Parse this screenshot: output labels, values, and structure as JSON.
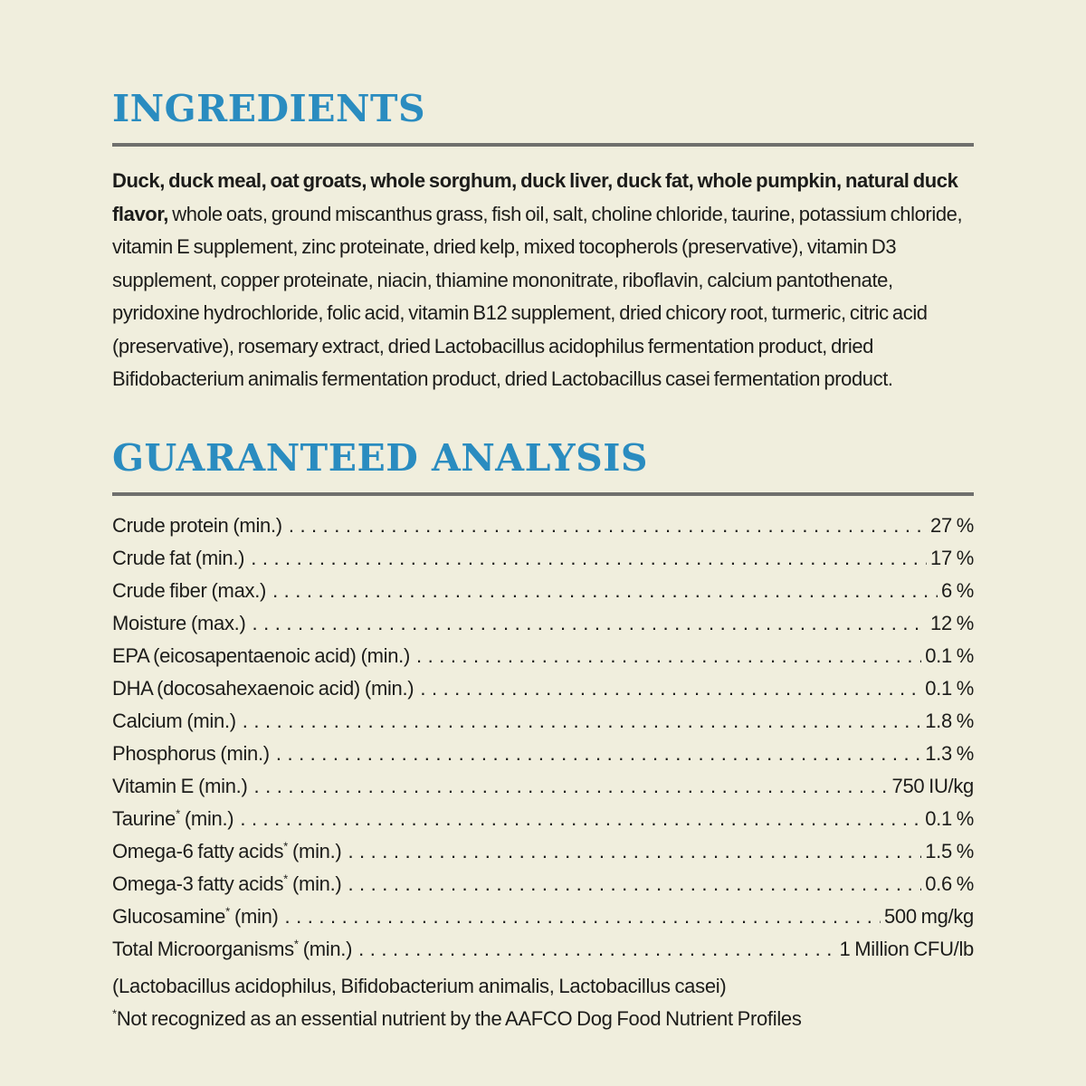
{
  "page": {
    "background": "#f0eedd",
    "accent_blue": "#2a8cc0",
    "rule_gray": "#6f6f6d",
    "text_color": "#1c1c1a"
  },
  "ingredients": {
    "title": "INGREDIENTS",
    "lead_bold": "Duck, duck meal, oat groats, whole sorghum, duck liver, duck fat, whole pumpkin, natural duck flavor,",
    "rest": " whole oats, ground miscanthus grass, fish oil, salt, choline chloride, taurine, potassium chloride, vitamin E supplement, zinc proteinate, dried kelp, mixed tocopherols (preservative), vitamin D3 supplement, copper proteinate, niacin, thiamine mononitrate, riboflavin, calcium pantothenate, pyridoxine hydrochloride, folic acid, vitamin B12 supplement, dried chicory root, turmeric, citric acid (preservative), rosemary extract, dried Lactobacillus acidophilus fermentation product, dried Bifidobacterium animalis fermentation product, dried Lactobacillus casei fermentation product."
  },
  "guaranteed_analysis": {
    "title": "GUARANTEED ANALYSIS",
    "rows": [
      {
        "name": "Crude protein",
        "sup": "",
        "qualifier": "(min.)",
        "value": "27 %"
      },
      {
        "name": "Crude fat",
        "sup": "",
        "qualifier": "(min.)",
        "value": "17 %"
      },
      {
        "name": "Crude fiber",
        "sup": "",
        "qualifier": "(max.)",
        "value": "6 %"
      },
      {
        "name": "Moisture",
        "sup": "",
        "qualifier": "(max.)",
        "value": "12 %"
      },
      {
        "name": "EPA (eicosapentaenoic acid)",
        "sup": "",
        "qualifier": "(min.)",
        "value": "0.1 %"
      },
      {
        "name": "DHA (docosahexaenoic acid)",
        "sup": "",
        "qualifier": "(min.)",
        "value": "0.1 %"
      },
      {
        "name": "Calcium",
        "sup": "",
        "qualifier": "(min.)",
        "value": "1.8 %"
      },
      {
        "name": "Phosphorus",
        "sup": "",
        "qualifier": "(min.)",
        "value": "1.3 %"
      },
      {
        "name": "Vitamin E",
        "sup": "",
        "qualifier": "(min.)",
        "value": "750 IU/kg"
      },
      {
        "name": "Taurine",
        "sup": "*",
        "qualifier": "(min.)",
        "value": "0.1 %"
      },
      {
        "name": "Omega-6 fatty acids",
        "sup": "*",
        "qualifier": "(min.)",
        "value": "1.5 %"
      },
      {
        "name": "Omega-3 fatty acids",
        "sup": "*",
        "qualifier": "(min.)",
        "value": "0.6 %"
      },
      {
        "name": "Glucosamine",
        "sup": "*",
        "qualifier": "(min)",
        "value": "500 mg/kg"
      },
      {
        "name": "Total Microorganisms",
        "sup": "*",
        "qualifier": "(min.)",
        "value": "1 Million CFU/lb"
      }
    ],
    "footnote_organisms": "(Lactobacillus acidophilus, Bifidobacterium animalis, Lactobacillus casei)",
    "footnote_sup": "*",
    "footnote_text": "Not recognized as an essential nutrient by the AAFCO Dog Food Nutrient Profiles"
  }
}
